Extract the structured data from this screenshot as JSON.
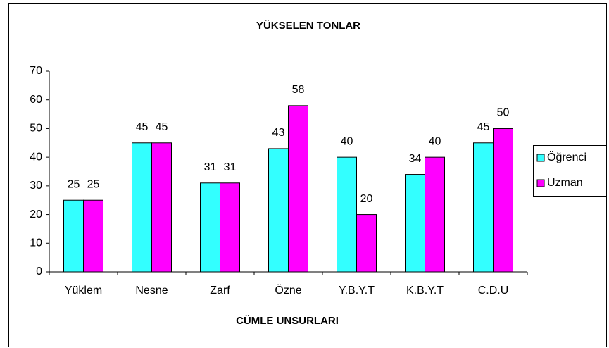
{
  "chart_data": {
    "type": "bar",
    "title": "YÜKSELEN TONLAR",
    "x_label": "CÜMLE UNSURLARI",
    "categories": [
      "Yüklem",
      "Nesne",
      "Zarf",
      "Özne",
      "Y.B.Y.T",
      "K.B.Y.T",
      "C.D.U"
    ],
    "series": [
      {
        "name": "Öğrenci",
        "color": "#33ffff",
        "values": [
          25,
          45,
          31,
          43,
          40,
          34,
          45
        ]
      },
      {
        "name": "Uzman",
        "color": "#ff00ff",
        "values": [
          25,
          45,
          31,
          58,
          20,
          40,
          50
        ]
      }
    ],
    "ylim": [
      0,
      70
    ],
    "yticks": [
      0,
      10,
      20,
      30,
      40,
      50,
      60,
      70
    ],
    "grid": false,
    "legend": "right"
  }
}
